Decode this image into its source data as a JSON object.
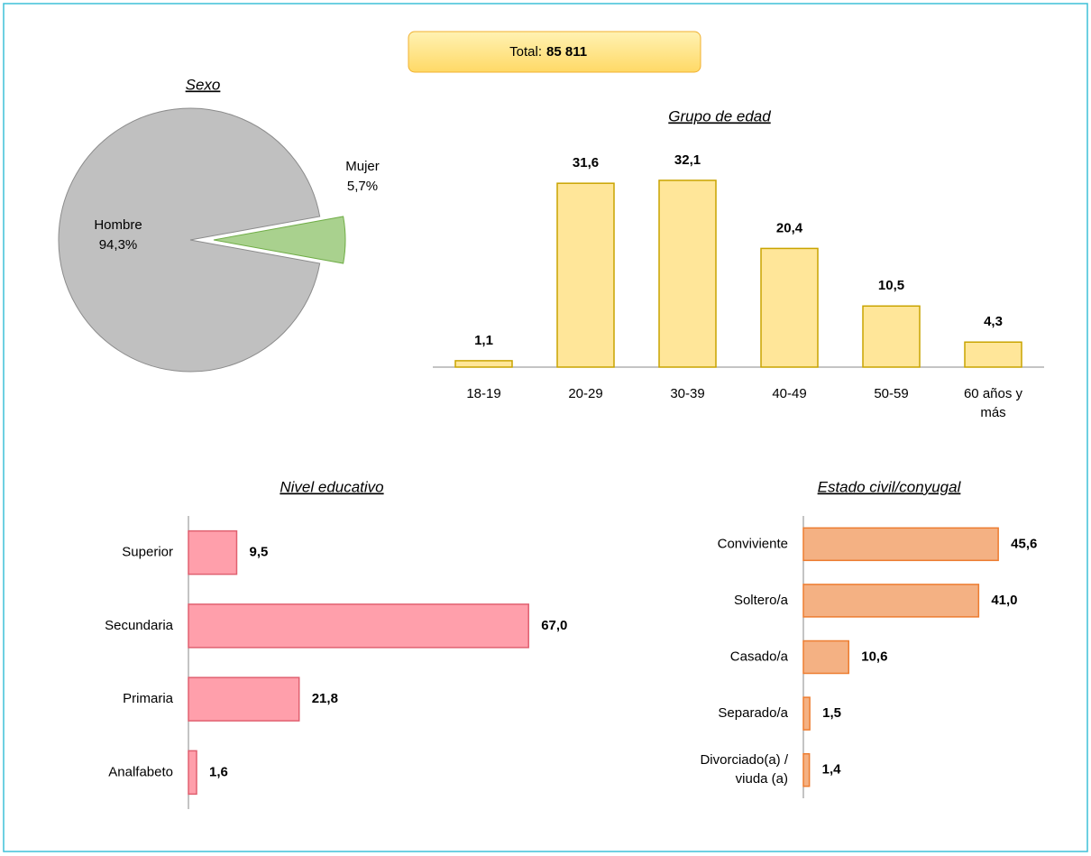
{
  "total": {
    "label": "Total:",
    "value": "85 811"
  },
  "chart_data": [
    {
      "type": "pie",
      "title": "Sexo",
      "categories": [
        "Hombre",
        "Mujer"
      ],
      "values": [
        94.3,
        5.7
      ],
      "value_labels": [
        "94,3%",
        "5,7%"
      ],
      "colors": [
        "#c0c0c0",
        "#a9d18e"
      ],
      "exploded": [
        false,
        true
      ]
    },
    {
      "type": "bar",
      "title": "Grupo de edad",
      "categories": [
        "18-19",
        "20-29",
        "30-39",
        "40-49",
        "50-59",
        "60 años y más"
      ],
      "values": [
        1.1,
        31.6,
        32.1,
        20.4,
        10.5,
        4.3
      ],
      "value_labels": [
        "1,1",
        "31,6",
        "32,1",
        "20,4",
        "10,5",
        "4,3"
      ],
      "color": "#ffe699"
    },
    {
      "type": "hbar",
      "title": "Nivel educativo",
      "categories": [
        "Superior",
        "Secundaria",
        "Primaria",
        "Analfabeto"
      ],
      "values": [
        9.5,
        67,
        21.8,
        1.6
      ],
      "value_labels": [
        "9,5",
        "67,0",
        "21,8",
        "1,6"
      ],
      "color": "#ff9fab"
    },
    {
      "type": "hbar",
      "title": "Estado civil/conyugal",
      "categories": [
        "Conviviente",
        "Soltero/a",
        "Casado/a",
        "Separado/a",
        "Divorciado(a) / viuda (a)"
      ],
      "values": [
        45.6,
        41,
        10.6,
        1.5,
        1.4
      ],
      "value_labels": [
        "45,6",
        "41,0",
        "10,6",
        "1,5",
        "1,4"
      ],
      "color": "#f4b183"
    }
  ]
}
